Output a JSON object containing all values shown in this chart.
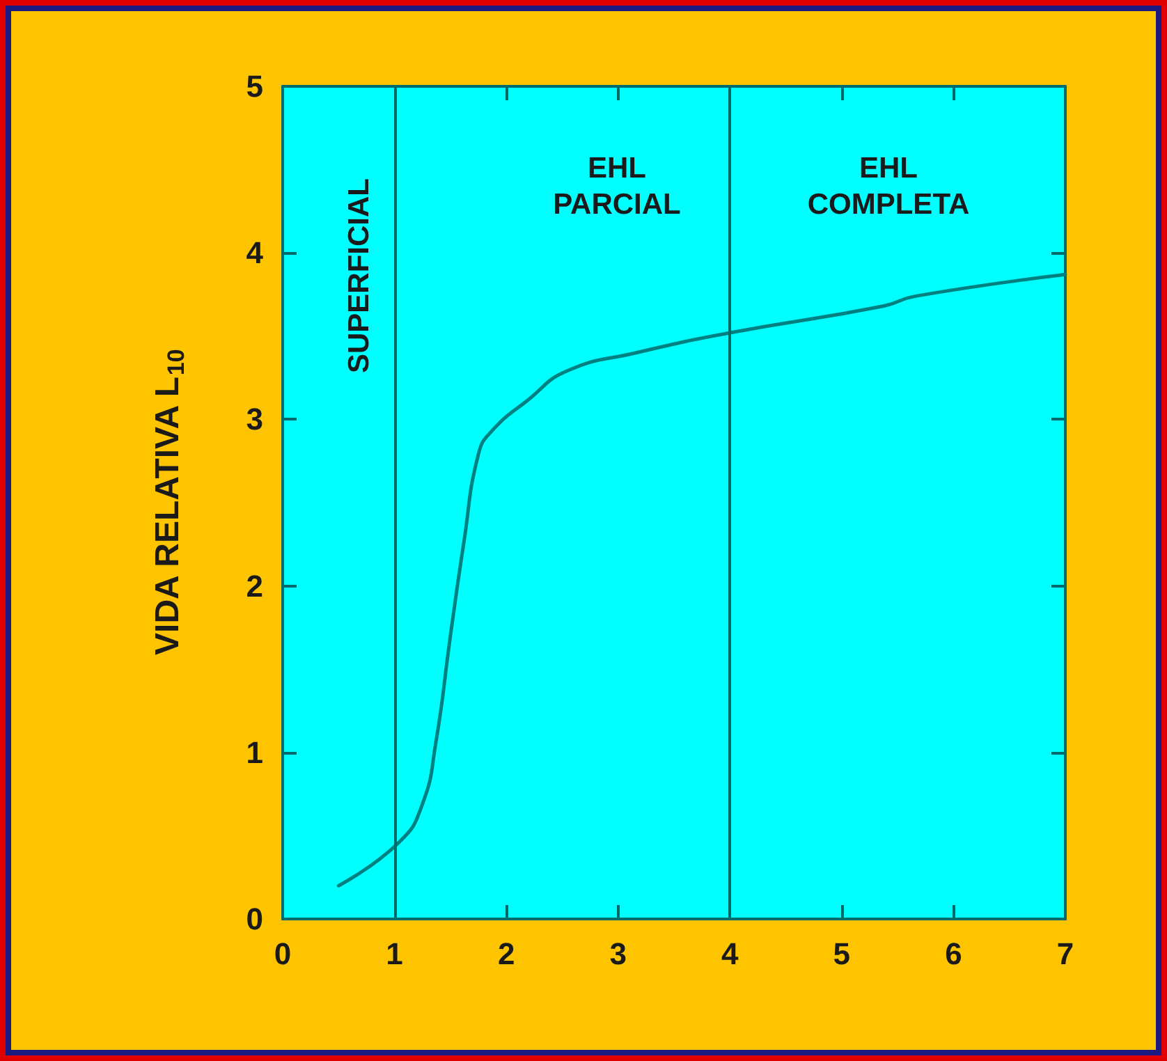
{
  "chart_data": {
    "type": "line",
    "ylabel": "VIDA RELATIVA L$_{10}$",
    "annotations": [
      "SUPERFICIAL",
      "EHL\nPARCIAL",
      "EHL\nCOMPLETA"
    ],
    "series": [
      {
        "color": "#008080",
        "x": [
          0.5,
          1.04,
          1.25,
          1.37,
          1.5,
          1.62,
          1.75,
          1.87,
          2.2,
          2.54,
          3.16,
          4.0,
          5.37,
          5.66,
          7
        ],
        "values": [
          0.2,
          0.46,
          0.69,
          1.06,
          1.7,
          2.26,
          2.79,
          2.93,
          3.12,
          3.29,
          3.4,
          3.52,
          3.68,
          3.74,
          3.87
        ]
      }
    ],
    "ref_lines": [
      {
        "axis": "x",
        "value": 1,
        "color": "#006b6b"
      },
      {
        "axis": "x",
        "value": 4,
        "color": "#006b6b"
      }
    ],
    "xlim": [
      0,
      7
    ],
    "ylim": [
      0,
      5
    ],
    "xticks": [
      0,
      1,
      2,
      3,
      4,
      5,
      6,
      7
    ],
    "yticks": [
      0,
      1,
      2,
      3,
      4,
      5
    ],
    "grid": false,
    "marker": "none",
    "line_style": "solid"
  }
}
